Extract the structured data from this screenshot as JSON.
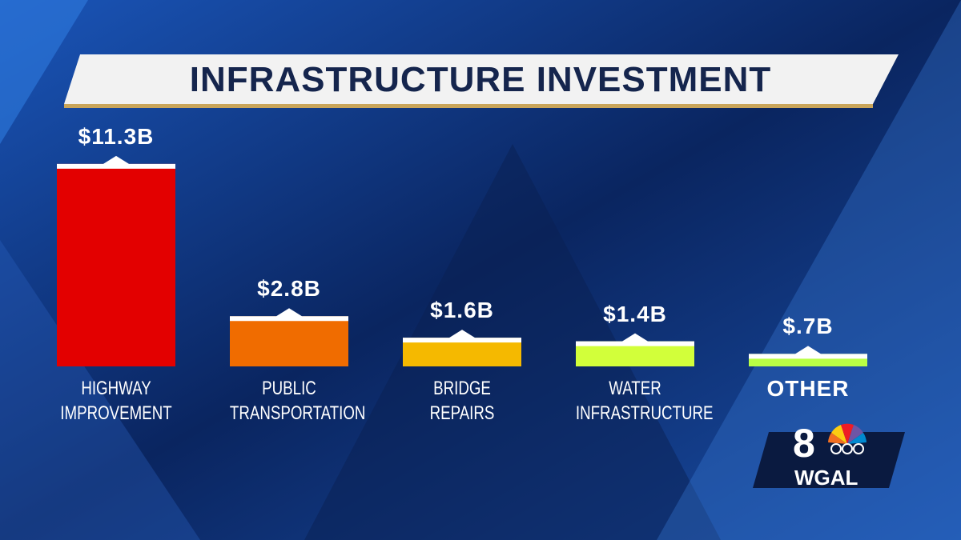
{
  "chart_data": {
    "type": "bar",
    "title": "INFRASTRUCTURE INVESTMENT",
    "categories": [
      "HIGHWAY IMPROVEMENT",
      "PUBLIC TRANSPORTATION",
      "BRIDGE REPAIRS",
      "WATER INFRASTRUCTURE",
      "OTHER"
    ],
    "values": [
      11.3,
      2.8,
      1.6,
      1.4,
      0.7
    ],
    "value_labels": [
      "$11.3B",
      "$2.8B",
      "$1.6B",
      "$1.4B",
      "$.7B"
    ],
    "colors": [
      "#e30000",
      "#f06c00",
      "#f5b900",
      "#d2ff3a",
      "#b9ff45"
    ]
  },
  "logo": {
    "channel": "8",
    "station": "WGAL"
  }
}
